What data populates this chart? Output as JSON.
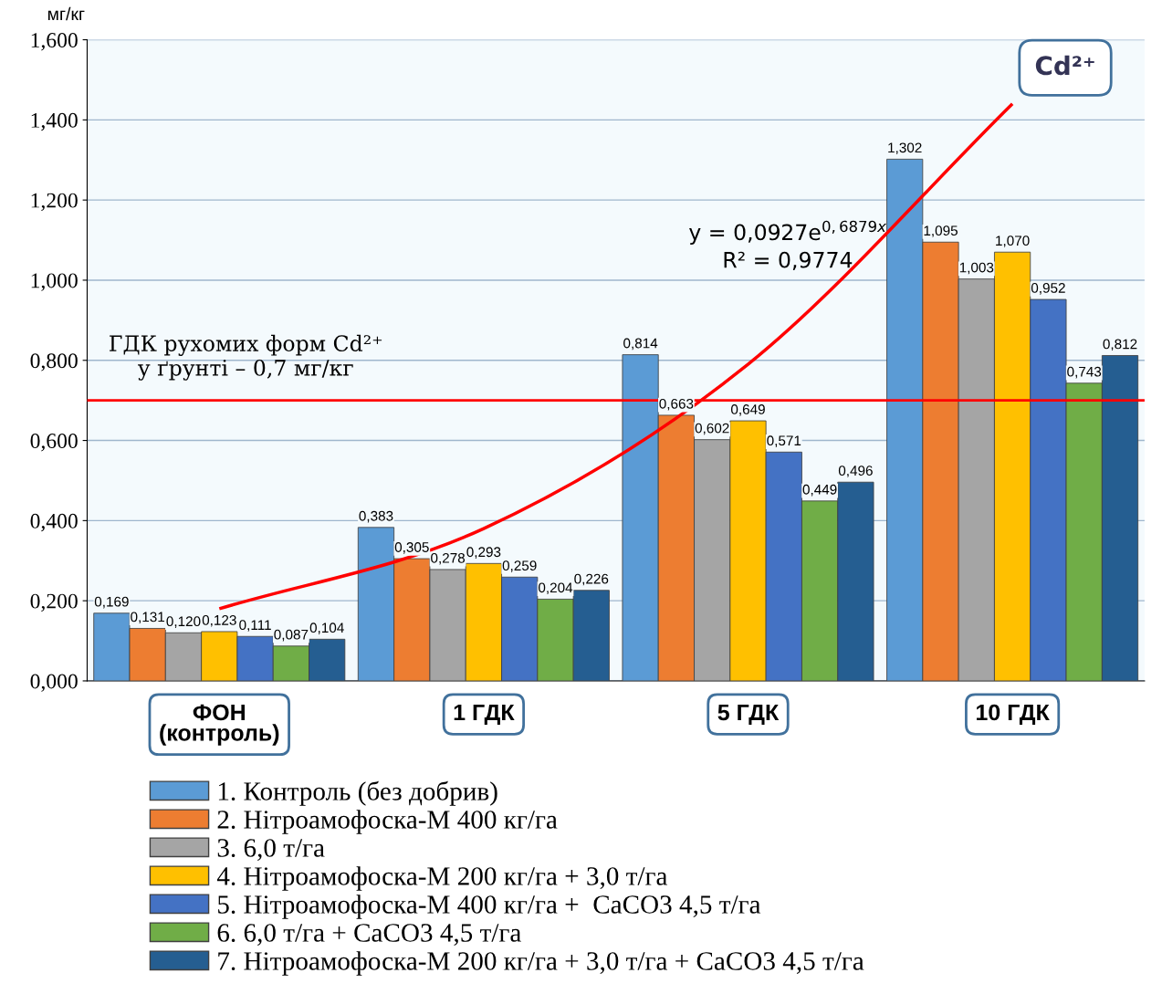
{
  "chart_data": {
    "type": "bar",
    "ylabel": "мг/кг",
    "categories": [
      "ФОН\n(контроль)",
      "1 ГДК",
      "5 ГДК",
      "10 ГДК"
    ],
    "ylim": [
      0,
      1.6
    ],
    "yticks": [
      {
        "value": 0,
        "label": "0,000"
      },
      {
        "value": 0.2,
        "label": "0,200"
      },
      {
        "value": 0.4,
        "label": "0,400"
      },
      {
        "value": 0.6,
        "label": "0,600"
      },
      {
        "value": 0.8,
        "label": "0,800"
      },
      {
        "value": 1.0,
        "label": "1,000"
      },
      {
        "value": 1.2,
        "label": "1,200"
      },
      {
        "value": 1.4,
        "label": "1,400"
      },
      {
        "value": 1.6,
        "label": "1,600"
      }
    ],
    "grid": "y",
    "legend": "bottom",
    "series": [
      {
        "name": "1. Контроль (без добрив)",
        "color": "#5b9bd5",
        "values": [
          0.169,
          0.383,
          0.814,
          1.302
        ],
        "value_labels": [
          "0,169",
          "0,383",
          "0,814",
          "1,302"
        ]
      },
      {
        "name": "2. Нітроамофоска-М 400 кг/га",
        "color": "#ed7d31",
        "values": [
          0.131,
          0.305,
          0.663,
          1.095
        ],
        "value_labels": [
          "0,131",
          "0,305",
          "0,663",
          "1,095"
        ]
      },
      {
        "name": "3. 6,0 т/га",
        "color": "#a5a5a5",
        "values": [
          0.12,
          0.278,
          0.602,
          1.003
        ],
        "value_labels": [
          "0,120",
          "0,278",
          "0,602",
          "1,003"
        ]
      },
      {
        "name": "4. Нітроамофоска-М 200 кг/га + 3,0 т/га",
        "color": "#ffc000",
        "values": [
          0.123,
          0.293,
          0.649,
          1.07
        ],
        "value_labels": [
          "0,123",
          "0,293",
          "0,649",
          "1,070"
        ]
      },
      {
        "name": "5. Нітроамофоска-М 400 кг/га +  CaCO3 4,5 т/га",
        "color": "#4472c4",
        "values": [
          0.111,
          0.259,
          0.571,
          0.952
        ],
        "value_labels": [
          "0,111",
          "0,259",
          "0,571",
          "0,952"
        ]
      },
      {
        "name": "6. 6,0 т/га + CaCO3 4,5 т/га",
        "color": "#70ad47",
        "values": [
          0.087,
          0.204,
          0.449,
          0.743
        ],
        "value_labels": [
          "0,087",
          "0,204",
          "0,449",
          "0,743"
        ]
      },
      {
        "name": "7. Нітроамофоска-М 200 кг/га + 3,0 т/га + CaCO3 4,5 т/га",
        "color": "#255e91",
        "values": [
          0.104,
          0.226,
          0.496,
          0.812
        ],
        "value_labels": [
          "0,104",
          "0,226",
          "0,496",
          "0,812"
        ]
      },
      {
        "type": "line",
        "color": "#ff0000",
        "values": [
          0.18,
          0.38,
          0.79,
          1.44
        ]
      }
    ],
    "ref_lines": [
      {
        "axis": "y",
        "value": 0.7,
        "label": "ГДК рухомих форм Cd²⁺\nу ґрунті – 0,7 мг/кг",
        "color": "#ff0000"
      }
    ],
    "annotations": [
      "y = 0,0927e$^{0,6879x}$\nR² = 0,9774",
      "Cd²⁺"
    ]
  }
}
